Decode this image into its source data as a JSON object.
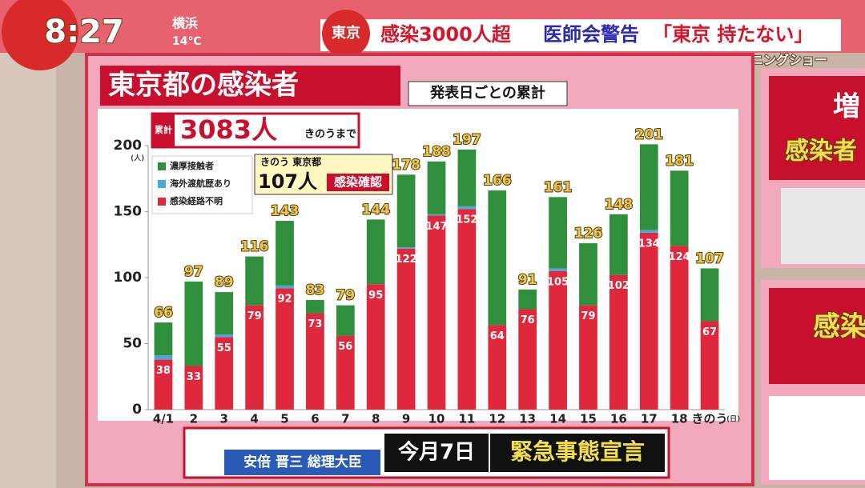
{
  "header": {
    "time": "8:27",
    "weather_city": "横浜",
    "weather_temp": "14℃",
    "headline_tag": "東京",
    "headline": "感染3000人超",
    "headline2": "医師会警告",
    "headline3": "「東京 持たない」",
    "show": "モーニングショー"
  },
  "panel": {
    "title": "東京都の感染者",
    "subtitle": "発表日ごとの累計",
    "total_tag": "累計",
    "total": "3083人",
    "total_note": "きのうまで",
    "callout_tag": "きのう 東京都",
    "callout_value": "107人",
    "callout_note": "感染確認"
  },
  "chart_data": {
    "type": "bar",
    "stacked": true,
    "categories": [
      "4/1",
      "2",
      "3",
      "4",
      "5",
      "6",
      "7",
      "8",
      "9",
      "10",
      "11",
      "12",
      "13",
      "14",
      "15",
      "16",
      "17",
      "18",
      "きのう"
    ],
    "series": [
      {
        "name": "感染経路不明",
        "color": "#e0283c",
        "values": [
          38,
          33,
          55,
          79,
          92,
          73,
          56,
          95,
          122,
          147,
          152,
          64,
          76,
          105,
          79,
          102,
          134,
          124,
          67
        ]
      },
      {
        "name": "海外渡航歴あり",
        "color": "#4aa8e0",
        "values": [
          3,
          0,
          2,
          0,
          2,
          0,
          0,
          0,
          1,
          1,
          2,
          0,
          0,
          2,
          0,
          0,
          2,
          0,
          0
        ]
      },
      {
        "name": "濃厚接触者",
        "color": "#2f8f3c",
        "values": [
          25,
          64,
          32,
          37,
          49,
          10,
          23,
          49,
          55,
          40,
          43,
          102,
          15,
          54,
          47,
          46,
          65,
          57,
          40
        ]
      }
    ],
    "totals": [
      66,
      97,
      89,
      116,
      143,
      83,
      79,
      144,
      178,
      188,
      197,
      166,
      91,
      161,
      126,
      148,
      201,
      181,
      107
    ],
    "ylim": [
      0,
      200
    ],
    "yticks": [
      0,
      50,
      100,
      150,
      200
    ],
    "y_unit": "(人)",
    "x_unit": "(日)"
  },
  "footer": {
    "name": "安倍 晋三 総理大臣",
    "date": "今月7日",
    "event": "緊急事態宣言"
  },
  "side": {
    "top": "増",
    "top2": "感染者",
    "bottom": "感染"
  }
}
